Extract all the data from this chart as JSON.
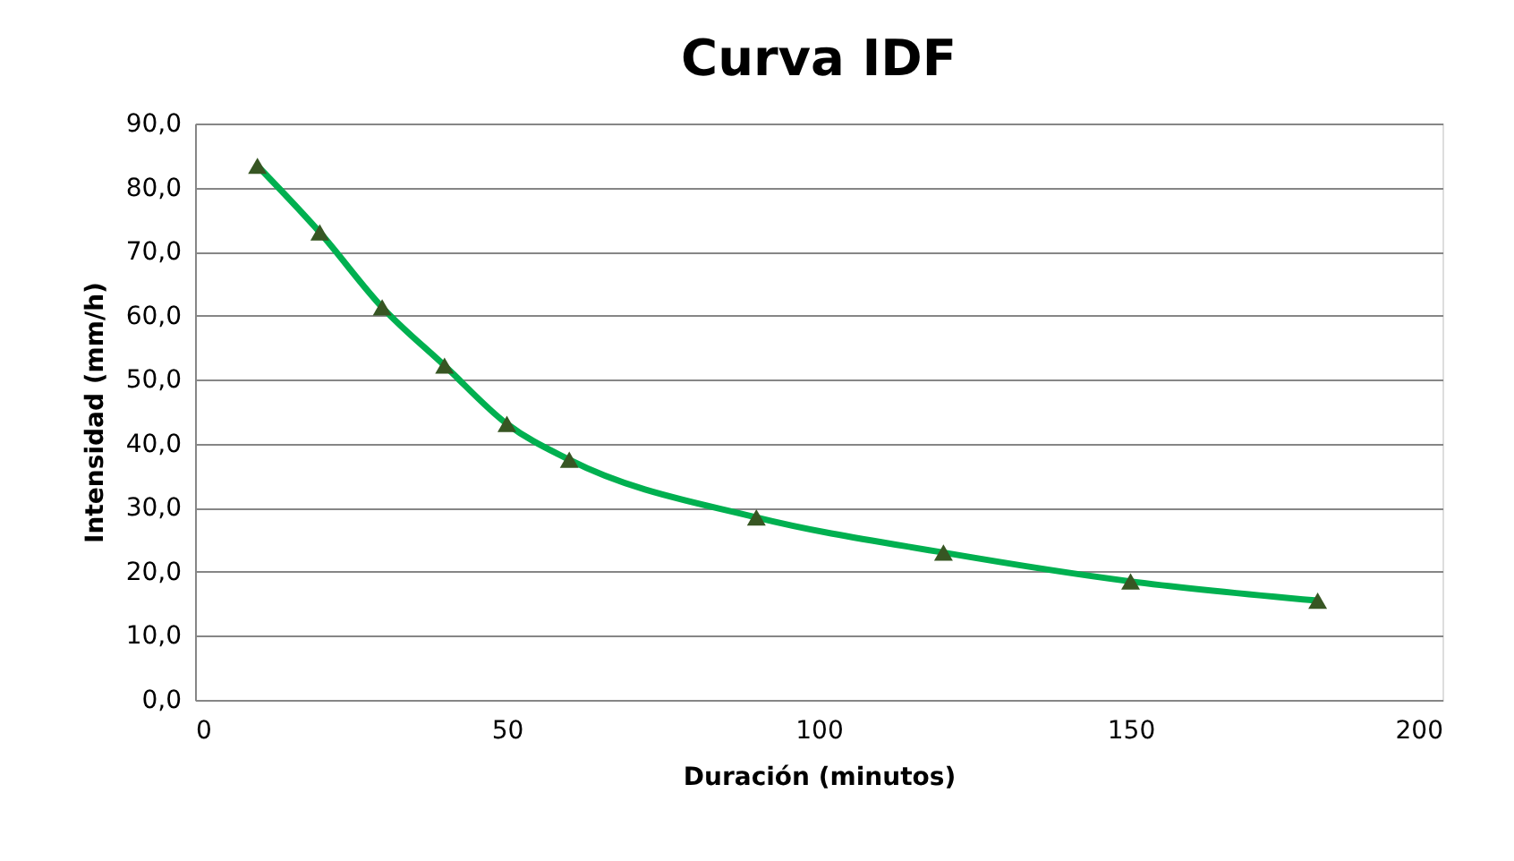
{
  "chart_data": {
    "type": "line",
    "title": "Curva IDF",
    "xlabel": "Duración (minutos)",
    "ylabel": "Intensidad (mm/h)",
    "x": [
      10,
      20,
      30,
      40,
      50,
      60,
      90,
      120,
      150,
      180
    ],
    "series": [
      {
        "color": "#00b050",
        "marker": "none",
        "values": [
          83.4,
          73.0,
          61.3,
          52.2,
          43.1,
          37.5,
          28.5,
          23.0,
          18.5,
          15.5
        ]
      },
      {
        "type": "scatter",
        "color": "#375623",
        "marker": "triangle",
        "values": [
          83.4,
          73.0,
          61.3,
          52.2,
          43.1,
          37.5,
          28.5,
          23.0,
          18.5,
          15.5
        ]
      }
    ],
    "xlim": [
      0,
      200
    ],
    "xticks": [
      0,
      50,
      100,
      150,
      200
    ],
    "ylim": [
      0,
      90
    ],
    "yticks": [
      {
        "value": 0,
        "label": "0,0"
      },
      {
        "value": 10,
        "label": "10,0"
      },
      {
        "value": 20,
        "label": "20,0"
      },
      {
        "value": 30,
        "label": "30,0"
      },
      {
        "value": 40,
        "label": "40,0"
      },
      {
        "value": 50,
        "label": "50,0"
      },
      {
        "value": 60,
        "label": "60,0"
      },
      {
        "value": 70,
        "label": "70,0"
      },
      {
        "value": 80,
        "label": "80,0"
      },
      {
        "value": 90,
        "label": "90,0"
      }
    ],
    "grid": "y"
  }
}
